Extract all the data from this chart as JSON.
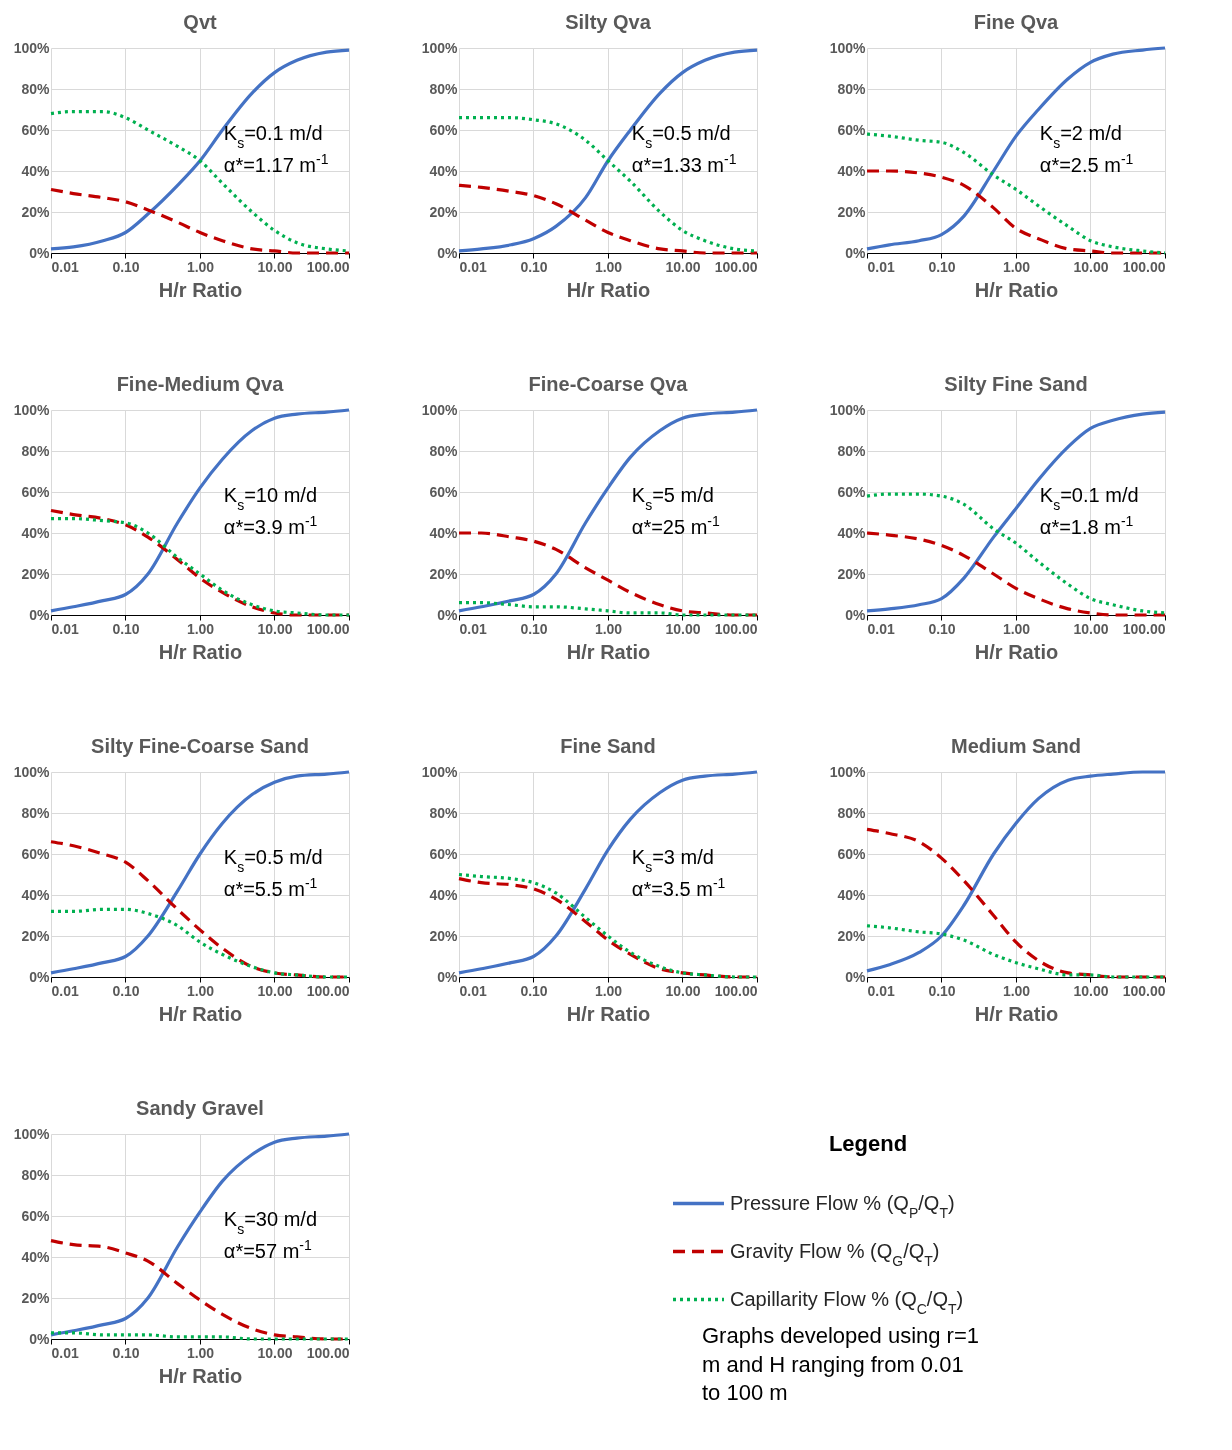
{
  "chart_data": [
    {
      "type": "line",
      "title": "Qvt",
      "xlabel": "H/r Ratio",
      "log": "x",
      "grid": true,
      "xlim": [
        0.01,
        100
      ],
      "xticks": [
        {
          "value": 0.01,
          "label": "0.01"
        },
        {
          "value": 0.1,
          "label": "0.10"
        },
        {
          "value": 1,
          "label": "1.00"
        },
        {
          "value": 10,
          "label": "10.00"
        },
        {
          "value": 100,
          "label": "100.00"
        }
      ],
      "ylim": [
        0,
        100
      ],
      "yticks": [
        {
          "value": 0,
          "label": "0%"
        },
        {
          "value": 20,
          "label": "20%"
        },
        {
          "value": 40,
          "label": "40%"
        },
        {
          "value": 60,
          "label": "60%"
        },
        {
          "value": 80,
          "label": "80%"
        },
        {
          "value": 100,
          "label": "100%"
        }
      ],
      "annotations": [
        "K$_{s}$=0.1 m/d",
        "α*=1.17 m$^{-1}$"
      ],
      "x": [
        0.01,
        0.02,
        0.05,
        0.1,
        0.2,
        0.5,
        1,
        2,
        5,
        10,
        20,
        50,
        100
      ],
      "series": [
        {
          "color": "#4472c4",
          "line_style": "solid",
          "values": [
            2,
            3,
            6,
            10,
            19,
            33,
            45,
            60,
            78,
            88,
            94,
            98,
            99
          ]
        },
        {
          "color": "#c00000",
          "line_style": "dashed",
          "values": [
            31,
            29,
            27,
            25,
            21,
            15,
            10,
            6,
            2,
            1,
            0,
            0,
            0
          ]
        },
        {
          "color": "#00b050",
          "line_style": "dotted",
          "values": [
            68,
            69,
            69,
            66,
            60,
            52,
            45,
            34,
            20,
            11,
            5,
            2,
            1
          ]
        }
      ]
    },
    {
      "type": "line",
      "title": "Silty Qva",
      "xlabel": "H/r Ratio",
      "log": "x",
      "grid": true,
      "xlim": [
        0.01,
        100
      ],
      "xticks": [
        {
          "value": 0.01,
          "label": "0.01"
        },
        {
          "value": 0.1,
          "label": "0.10"
        },
        {
          "value": 1,
          "label": "1.00"
        },
        {
          "value": 10,
          "label": "10.00"
        },
        {
          "value": 100,
          "label": "100.00"
        }
      ],
      "ylim": [
        0,
        100
      ],
      "yticks": [
        {
          "value": 0,
          "label": "0%"
        },
        {
          "value": 20,
          "label": "20%"
        },
        {
          "value": 40,
          "label": "40%"
        },
        {
          "value": 60,
          "label": "60%"
        },
        {
          "value": 80,
          "label": "80%"
        },
        {
          "value": 100,
          "label": "100%"
        }
      ],
      "annotations": [
        "K$_{s}$=0.5 m/d",
        "α*=1.33 m$^{-1}$"
      ],
      "x": [
        0.01,
        0.02,
        0.05,
        0.1,
        0.2,
        0.5,
        1,
        2,
        5,
        10,
        20,
        50,
        100
      ],
      "series": [
        {
          "color": "#4472c4",
          "line_style": "solid",
          "values": [
            1,
            2,
            4,
            7,
            13,
            27,
            45,
            60,
            78,
            88,
            94,
            98,
            99
          ]
        },
        {
          "color": "#c00000",
          "line_style": "dashed",
          "values": [
            33,
            32,
            30,
            28,
            24,
            16,
            10,
            6,
            2,
            1,
            0,
            0,
            0
          ]
        },
        {
          "color": "#00b050",
          "line_style": "dotted",
          "values": [
            66,
            66,
            66,
            65,
            63,
            55,
            45,
            35,
            20,
            11,
            6,
            2,
            1
          ]
        }
      ]
    },
    {
      "type": "line",
      "title": "Fine Qva",
      "xlabel": "H/r Ratio",
      "log": "x",
      "grid": true,
      "xlim": [
        0.01,
        100
      ],
      "xticks": [
        {
          "value": 0.01,
          "label": "0.01"
        },
        {
          "value": 0.1,
          "label": "0.10"
        },
        {
          "value": 1,
          "label": "1.00"
        },
        {
          "value": 10,
          "label": "10.00"
        },
        {
          "value": 100,
          "label": "100.00"
        }
      ],
      "ylim": [
        0,
        100
      ],
      "yticks": [
        {
          "value": 0,
          "label": "0%"
        },
        {
          "value": 20,
          "label": "20%"
        },
        {
          "value": 40,
          "label": "40%"
        },
        {
          "value": 60,
          "label": "60%"
        },
        {
          "value": 80,
          "label": "80%"
        },
        {
          "value": 100,
          "label": "100%"
        }
      ],
      "annotations": [
        "K$_{s}$=2 m/d",
        "α*=2.5 m$^{-1}$"
      ],
      "x": [
        0.01,
        0.02,
        0.05,
        0.1,
        0.2,
        0.5,
        1,
        2,
        5,
        10,
        20,
        50,
        100
      ],
      "series": [
        {
          "color": "#4472c4",
          "line_style": "solid",
          "values": [
            2,
            4,
            6,
            9,
            18,
            40,
            57,
            70,
            85,
            93,
            97,
            99,
            100
          ]
        },
        {
          "color": "#c00000",
          "line_style": "dashed",
          "values": [
            40,
            40,
            39,
            37,
            33,
            22,
            12,
            7,
            2,
            1,
            0,
            0,
            0
          ]
        },
        {
          "color": "#00b050",
          "line_style": "dotted",
          "values": [
            58,
            57,
            55,
            54,
            49,
            38,
            31,
            23,
            13,
            6,
            3,
            1,
            0
          ]
        }
      ]
    },
    {
      "type": "line",
      "title": "Fine-Medium Qva",
      "xlabel": "H/r Ratio",
      "log": "x",
      "grid": true,
      "xlim": [
        0.01,
        100
      ],
      "xticks": [
        {
          "value": 0.01,
          "label": "0.01"
        },
        {
          "value": 0.1,
          "label": "0.10"
        },
        {
          "value": 1,
          "label": "1.00"
        },
        {
          "value": 10,
          "label": "10.00"
        },
        {
          "value": 100,
          "label": "100.00"
        }
      ],
      "ylim": [
        0,
        100
      ],
      "yticks": [
        {
          "value": 0,
          "label": "0%"
        },
        {
          "value": 20,
          "label": "20%"
        },
        {
          "value": 40,
          "label": "40%"
        },
        {
          "value": 60,
          "label": "60%"
        },
        {
          "value": 80,
          "label": "80%"
        },
        {
          "value": 100,
          "label": "100%"
        }
      ],
      "annotations": [
        "K$_{s}$=10 m/d",
        "α*=3.9 m$^{-1}$"
      ],
      "x": [
        0.01,
        0.02,
        0.05,
        0.1,
        0.2,
        0.5,
        1,
        2,
        5,
        10,
        20,
        50,
        100
      ],
      "series": [
        {
          "color": "#4472c4",
          "line_style": "solid",
          "values": [
            2,
            4,
            7,
            10,
            20,
            45,
            62,
            76,
            90,
            96,
            98,
            99,
            100
          ]
        },
        {
          "color": "#c00000",
          "line_style": "dashed",
          "values": [
            51,
            49,
            47,
            44,
            38,
            27,
            18,
            11,
            4,
            1,
            0,
            0,
            0
          ]
        },
        {
          "color": "#00b050",
          "line_style": "dotted",
          "values": [
            47,
            47,
            46,
            45,
            40,
            28,
            20,
            12,
            5,
            2,
            1,
            0,
            0
          ]
        }
      ]
    },
    {
      "type": "line",
      "title": "Fine-Coarse Qva",
      "xlabel": "H/r Ratio",
      "log": "x",
      "grid": true,
      "xlim": [
        0.01,
        100
      ],
      "xticks": [
        {
          "value": 0.01,
          "label": "0.01"
        },
        {
          "value": 0.1,
          "label": "0.10"
        },
        {
          "value": 1,
          "label": "1.00"
        },
        {
          "value": 10,
          "label": "10.00"
        },
        {
          "value": 100,
          "label": "100.00"
        }
      ],
      "ylim": [
        0,
        100
      ],
      "yticks": [
        {
          "value": 0,
          "label": "0%"
        },
        {
          "value": 20,
          "label": "20%"
        },
        {
          "value": 40,
          "label": "40%"
        },
        {
          "value": 60,
          "label": "60%"
        },
        {
          "value": 80,
          "label": "80%"
        },
        {
          "value": 100,
          "label": "100%"
        }
      ],
      "annotations": [
        "K$_{s}$=5 m/d",
        "α*=25 m$^{-1}$"
      ],
      "x": [
        0.01,
        0.02,
        0.05,
        0.1,
        0.2,
        0.5,
        1,
        2,
        5,
        10,
        20,
        50,
        100
      ],
      "series": [
        {
          "color": "#4472c4",
          "line_style": "solid",
          "values": [
            2,
            4,
            7,
            10,
            20,
            45,
            62,
            77,
            90,
            96,
            98,
            99,
            100
          ]
        },
        {
          "color": "#c00000",
          "line_style": "dashed",
          "values": [
            40,
            40,
            38,
            36,
            32,
            23,
            17,
            11,
            5,
            2,
            1,
            0,
            0
          ]
        },
        {
          "color": "#00b050",
          "line_style": "dotted",
          "values": [
            6,
            6,
            5,
            4,
            4,
            3,
            2,
            1,
            1,
            0,
            0,
            0,
            0
          ]
        }
      ]
    },
    {
      "type": "line",
      "title": "Silty Fine Sand",
      "xlabel": "H/r Ratio",
      "log": "x",
      "grid": true,
      "xlim": [
        0.01,
        100
      ],
      "xticks": [
        {
          "value": 0.01,
          "label": "0.01"
        },
        {
          "value": 0.1,
          "label": "0.10"
        },
        {
          "value": 1,
          "label": "1.00"
        },
        {
          "value": 10,
          "label": "10.00"
        },
        {
          "value": 100,
          "label": "100.00"
        }
      ],
      "ylim": [
        0,
        100
      ],
      "yticks": [
        {
          "value": 0,
          "label": "0%"
        },
        {
          "value": 20,
          "label": "20%"
        },
        {
          "value": 40,
          "label": "40%"
        },
        {
          "value": 60,
          "label": "60%"
        },
        {
          "value": 80,
          "label": "80%"
        },
        {
          "value": 100,
          "label": "100%"
        }
      ],
      "annotations": [
        "K$_{s}$=0.1 m/d",
        "α*=1.8 m$^{-1}$"
      ],
      "x": [
        0.01,
        0.02,
        0.05,
        0.1,
        0.2,
        0.5,
        1,
        2,
        5,
        10,
        20,
        50,
        100
      ],
      "series": [
        {
          "color": "#4472c4",
          "line_style": "solid",
          "values": [
            2,
            3,
            5,
            8,
            18,
            38,
            52,
            66,
            82,
            91,
            95,
            98,
            99
          ]
        },
        {
          "color": "#c00000",
          "line_style": "dashed",
          "values": [
            40,
            39,
            37,
            34,
            29,
            20,
            13,
            8,
            3,
            1,
            0,
            0,
            0
          ]
        },
        {
          "color": "#00b050",
          "line_style": "dotted",
          "values": [
            58,
            59,
            59,
            58,
            54,
            42,
            35,
            26,
            15,
            8,
            5,
            2,
            1
          ]
        }
      ]
    },
    {
      "type": "line",
      "title": "Silty Fine-Coarse Sand",
      "xlabel": "H/r Ratio",
      "log": "x",
      "grid": true,
      "xlim": [
        0.01,
        100
      ],
      "xticks": [
        {
          "value": 0.01,
          "label": "0.01"
        },
        {
          "value": 0.1,
          "label": "0.10"
        },
        {
          "value": 1,
          "label": "1.00"
        },
        {
          "value": 10,
          "label": "10.00"
        },
        {
          "value": 100,
          "label": "100.00"
        }
      ],
      "ylim": [
        0,
        100
      ],
      "yticks": [
        {
          "value": 0,
          "label": "0%"
        },
        {
          "value": 20,
          "label": "20%"
        },
        {
          "value": 40,
          "label": "40%"
        },
        {
          "value": 60,
          "label": "60%"
        },
        {
          "value": 80,
          "label": "80%"
        },
        {
          "value": 100,
          "label": "100%"
        }
      ],
      "annotations": [
        "K$_{s}$=0.5 m/d",
        "α*=5.5 m$^{-1}$"
      ],
      "x": [
        0.01,
        0.02,
        0.05,
        0.1,
        0.2,
        0.5,
        1,
        2,
        5,
        10,
        20,
        50,
        100
      ],
      "series": [
        {
          "color": "#4472c4",
          "line_style": "solid",
          "values": [
            2,
            4,
            7,
            10,
            20,
            42,
            60,
            75,
            89,
            95,
            98,
            99,
            100
          ]
        },
        {
          "color": "#c00000",
          "line_style": "dashed",
          "values": [
            66,
            64,
            60,
            56,
            47,
            33,
            23,
            14,
            5,
            2,
            1,
            0,
            0
          ]
        },
        {
          "color": "#00b050",
          "line_style": "dotted",
          "values": [
            32,
            32,
            33,
            33,
            31,
            25,
            17,
            11,
            5,
            2,
            1,
            0,
            0
          ]
        }
      ]
    },
    {
      "type": "line",
      "title": "Fine Sand",
      "xlabel": "H/r Ratio",
      "log": "x",
      "grid": true,
      "xlim": [
        0.01,
        100
      ],
      "xticks": [
        {
          "value": 0.01,
          "label": "0.01"
        },
        {
          "value": 0.1,
          "label": "0.10"
        },
        {
          "value": 1,
          "label": "1.00"
        },
        {
          "value": 10,
          "label": "10.00"
        },
        {
          "value": 100,
          "label": "100.00"
        }
      ],
      "ylim": [
        0,
        100
      ],
      "yticks": [
        {
          "value": 0,
          "label": "0%"
        },
        {
          "value": 20,
          "label": "20%"
        },
        {
          "value": 40,
          "label": "40%"
        },
        {
          "value": 60,
          "label": "60%"
        },
        {
          "value": 80,
          "label": "80%"
        },
        {
          "value": 100,
          "label": "100%"
        }
      ],
      "annotations": [
        "K$_{s}$=3 m/d",
        "α*=3.5 m$^{-1}$"
      ],
      "x": [
        0.01,
        0.02,
        0.05,
        0.1,
        0.2,
        0.5,
        1,
        2,
        5,
        10,
        20,
        50,
        100
      ],
      "series": [
        {
          "color": "#4472c4",
          "line_style": "solid",
          "values": [
            2,
            4,
            7,
            10,
            20,
            43,
            62,
            77,
            90,
            96,
            98,
            99,
            100
          ]
        },
        {
          "color": "#c00000",
          "line_style": "dashed",
          "values": [
            48,
            46,
            45,
            43,
            38,
            27,
            18,
            11,
            4,
            2,
            1,
            0,
            0
          ]
        },
        {
          "color": "#00b050",
          "line_style": "dotted",
          "values": [
            50,
            49,
            48,
            46,
            41,
            29,
            20,
            12,
            5,
            2,
            1,
            0,
            0
          ]
        }
      ]
    },
    {
      "type": "line",
      "title": "Medium Sand",
      "xlabel": "H/r Ratio",
      "log": "x",
      "grid": true,
      "xlim": [
        0.01,
        100
      ],
      "xticks": [
        {
          "value": 0.01,
          "label": "0.01"
        },
        {
          "value": 0.1,
          "label": "0.10"
        },
        {
          "value": 1,
          "label": "1.00"
        },
        {
          "value": 10,
          "label": "10.00"
        },
        {
          "value": 100,
          "label": "100.00"
        }
      ],
      "ylim": [
        0,
        100
      ],
      "yticks": [
        {
          "value": 0,
          "label": "0%"
        },
        {
          "value": 20,
          "label": "20%"
        },
        {
          "value": 40,
          "label": "40%"
        },
        {
          "value": 60,
          "label": "60%"
        },
        {
          "value": 80,
          "label": "80%"
        },
        {
          "value": 100,
          "label": "100%"
        }
      ],
      "x": [
        0.01,
        0.02,
        0.05,
        0.1,
        0.2,
        0.5,
        1,
        2,
        5,
        10,
        20,
        50,
        100
      ],
      "series": [
        {
          "color": "#4472c4",
          "line_style": "solid",
          "values": [
            3,
            6,
            12,
            20,
            35,
            60,
            75,
            87,
            96,
            98,
            99,
            100,
            100
          ]
        },
        {
          "color": "#c00000",
          "line_style": "dashed",
          "values": [
            72,
            70,
            66,
            58,
            47,
            30,
            17,
            8,
            2,
            1,
            0,
            0,
            0
          ]
        },
        {
          "color": "#00b050",
          "line_style": "dotted",
          "values": [
            25,
            24,
            22,
            21,
            18,
            11,
            7,
            4,
            1,
            1,
            0,
            0,
            0
          ]
        }
      ]
    },
    {
      "type": "line",
      "title": "Sandy Gravel",
      "xlabel": "H/r Ratio",
      "log": "x",
      "grid": true,
      "legend": "right",
      "legend_title": "Legend",
      "xlim": [
        0.01,
        100
      ],
      "xticks": [
        {
          "value": 0.01,
          "label": "0.01"
        },
        {
          "value": 0.1,
          "label": "0.10"
        },
        {
          "value": 1,
          "label": "1.00"
        },
        {
          "value": 10,
          "label": "10.00"
        },
        {
          "value": 100,
          "label": "100.00"
        }
      ],
      "ylim": [
        0,
        100
      ],
      "yticks": [
        {
          "value": 0,
          "label": "0%"
        },
        {
          "value": 20,
          "label": "20%"
        },
        {
          "value": 40,
          "label": "40%"
        },
        {
          "value": 60,
          "label": "60%"
        },
        {
          "value": 80,
          "label": "80%"
        },
        {
          "value": 100,
          "label": "100%"
        }
      ],
      "annotations": [
        "K$_{s}$=30 m/d",
        "α*=57 m$^{-1}$"
      ],
      "x": [
        0.01,
        0.02,
        0.05,
        0.1,
        0.2,
        0.5,
        1,
        2,
        5,
        10,
        20,
        50,
        100
      ],
      "series": [
        {
          "name": "Pressure Flow % (Q$_{P}$/Q$_{T}$)",
          "color": "#4472c4",
          "line_style": "solid",
          "values": [
            2,
            4,
            7,
            10,
            20,
            45,
            62,
            77,
            90,
            96,
            98,
            99,
            100
          ]
        },
        {
          "name": "Gravity Flow % (Q$_{G}$/Q$_{T}$)",
          "color": "#c00000",
          "line_style": "dashed",
          "values": [
            48,
            46,
            45,
            42,
            38,
            27,
            19,
            12,
            5,
            2,
            1,
            0,
            0
          ]
        },
        {
          "name": "Capillarity Flow % (Q$_{C}$/Q$_{T}$)",
          "color": "#00b050",
          "line_style": "dotted",
          "values": [
            3,
            3,
            2,
            2,
            2,
            1,
            1,
            1,
            0,
            0,
            0,
            0,
            0
          ]
        }
      ]
    },
    {
      "type": "other",
      "annotations": [
        "Graphs developed using r=1 m and H ranging from 0.01 to 100 m"
      ]
    }
  ]
}
